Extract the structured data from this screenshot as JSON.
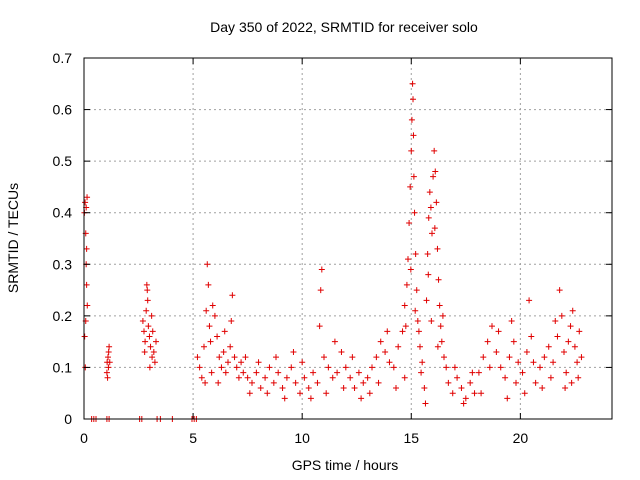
{
  "chart_data": {
    "type": "scatter",
    "title": "Day 350 of 2022, SRMTID for receiver solo",
    "xlabel": "GPS time / hours",
    "ylabel": "SRMTID / TECUs",
    "xlim": [
      0,
      24.2
    ],
    "ylim": [
      0,
      0.7
    ],
    "xticks": [
      0,
      5,
      10,
      15,
      20
    ],
    "xtick_labels": [
      "0",
      "5",
      "10",
      "15",
      "20"
    ],
    "yticks": [
      0,
      0.1,
      0.2,
      0.3,
      0.4,
      0.5,
      0.6,
      0.7
    ],
    "ytick_labels": [
      "0",
      "0.1",
      "0.2",
      "0.3",
      "0.4",
      "0.5",
      "0.6",
      "0.7"
    ],
    "grid": true,
    "marker": "+",
    "color": "#e00000",
    "series": [
      {
        "name": "SRMTID",
        "points": [
          [
            0.02,
            0.4
          ],
          [
            0.05,
            0.42
          ],
          [
            0.08,
            0.36
          ],
          [
            0.1,
            0.3
          ],
          [
            0.12,
            0.26
          ],
          [
            0.15,
            0.22
          ],
          [
            0.03,
            0.16
          ],
          [
            0.06,
            0.1
          ],
          [
            0.1,
            0.41
          ],
          [
            0.14,
            0.43
          ],
          [
            0.08,
            0.19
          ],
          [
            0.12,
            0.33
          ],
          [
            0.35,
            0.0
          ],
          [
            0.45,
            0.0
          ],
          [
            0.55,
            0.0
          ],
          [
            1.05,
            0.0
          ],
          [
            1.15,
            0.0
          ],
          [
            2.55,
            0.0
          ],
          [
            2.65,
            0.0
          ],
          [
            3.35,
            0.0
          ],
          [
            3.5,
            0.0
          ],
          [
            4.05,
            0.0
          ],
          [
            4.95,
            0.0
          ],
          [
            5.05,
            0.0
          ],
          [
            5.15,
            0.0
          ],
          [
            1.05,
            0.09
          ],
          [
            1.1,
            0.12
          ],
          [
            1.15,
            0.14
          ],
          [
            1.12,
            0.1
          ],
          [
            1.08,
            0.08
          ],
          [
            1.18,
            0.11
          ],
          [
            1.13,
            0.13
          ],
          [
            1.06,
            0.11
          ],
          [
            2.7,
            0.19
          ],
          [
            2.75,
            0.17
          ],
          [
            2.8,
            0.15
          ],
          [
            2.85,
            0.21
          ],
          [
            2.9,
            0.25
          ],
          [
            2.95,
            0.18
          ],
          [
            3.0,
            0.16
          ],
          [
            3.05,
            0.14
          ],
          [
            3.1,
            0.2
          ],
          [
            3.15,
            0.17
          ],
          [
            3.2,
            0.13
          ],
          [
            3.25,
            0.11
          ],
          [
            3.3,
            0.15
          ],
          [
            2.88,
            0.26
          ],
          [
            2.92,
            0.23
          ],
          [
            3.02,
            0.1
          ],
          [
            2.78,
            0.13
          ],
          [
            3.12,
            0.12
          ],
          [
            5.2,
            0.12
          ],
          [
            5.3,
            0.1
          ],
          [
            5.4,
            0.08
          ],
          [
            5.5,
            0.14
          ],
          [
            5.6,
            0.21
          ],
          [
            5.65,
            0.3
          ],
          [
            5.7,
            0.26
          ],
          [
            5.75,
            0.18
          ],
          [
            5.8,
            0.15
          ],
          [
            5.9,
            0.22
          ],
          [
            6.0,
            0.2
          ],
          [
            6.1,
            0.16
          ],
          [
            6.2,
            0.12
          ],
          [
            6.3,
            0.1
          ],
          [
            6.4,
            0.13
          ],
          [
            6.5,
            0.09
          ],
          [
            6.6,
            0.11
          ],
          [
            6.7,
            0.14
          ],
          [
            6.8,
            0.24
          ],
          [
            6.9,
            0.12
          ],
          [
            7.0,
            0.1
          ],
          [
            7.1,
            0.08
          ],
          [
            7.2,
            0.11
          ],
          [
            7.3,
            0.09
          ],
          [
            7.4,
            0.12
          ],
          [
            5.55,
            0.07
          ],
          [
            5.85,
            0.09
          ],
          [
            6.15,
            0.07
          ],
          [
            6.45,
            0.17
          ],
          [
            6.75,
            0.19
          ],
          [
            7.5,
            0.08
          ],
          [
            7.7,
            0.07
          ],
          [
            7.9,
            0.09
          ],
          [
            8.1,
            0.06
          ],
          [
            8.3,
            0.08
          ],
          [
            8.5,
            0.1
          ],
          [
            8.7,
            0.07
          ],
          [
            8.9,
            0.09
          ],
          [
            9.1,
            0.06
          ],
          [
            9.3,
            0.08
          ],
          [
            9.5,
            0.1
          ],
          [
            9.7,
            0.07
          ],
          [
            9.9,
            0.05
          ],
          [
            10.1,
            0.08
          ],
          [
            10.3,
            0.06
          ],
          [
            10.5,
            0.09
          ],
          [
            10.7,
            0.07
          ],
          [
            10.8,
            0.18
          ],
          [
            10.85,
            0.25
          ],
          [
            10.9,
            0.29
          ],
          [
            11.0,
            0.12
          ],
          [
            11.2,
            0.1
          ],
          [
            11.4,
            0.08
          ],
          [
            11.6,
            0.09
          ],
          [
            11.8,
            0.13
          ],
          [
            12.0,
            0.1
          ],
          [
            12.2,
            0.08
          ],
          [
            12.4,
            0.06
          ],
          [
            12.6,
            0.09
          ],
          [
            12.8,
            0.07
          ],
          [
            13.0,
            0.08
          ],
          [
            13.2,
            0.1
          ],
          [
            13.4,
            0.12
          ],
          [
            13.6,
            0.15
          ],
          [
            13.8,
            0.13
          ],
          [
            14.0,
            0.11
          ],
          [
            14.2,
            0.1
          ],
          [
            14.4,
            0.14
          ],
          [
            14.6,
            0.17
          ],
          [
            7.6,
            0.05
          ],
          [
            8.0,
            0.11
          ],
          [
            8.4,
            0.05
          ],
          [
            8.8,
            0.12
          ],
          [
            9.2,
            0.04
          ],
          [
            9.6,
            0.13
          ],
          [
            10.0,
            0.11
          ],
          [
            10.4,
            0.04
          ],
          [
            11.1,
            0.05
          ],
          [
            11.5,
            0.15
          ],
          [
            11.9,
            0.06
          ],
          [
            12.3,
            0.12
          ],
          [
            12.7,
            0.04
          ],
          [
            13.1,
            0.05
          ],
          [
            13.5,
            0.07
          ],
          [
            13.9,
            0.17
          ],
          [
            14.3,
            0.06
          ],
          [
            14.7,
            0.08
          ],
          [
            14.7,
            0.22
          ],
          [
            14.8,
            0.26
          ],
          [
            14.85,
            0.31
          ],
          [
            14.9,
            0.38
          ],
          [
            14.95,
            0.45
          ],
          [
            15.0,
            0.52
          ],
          [
            15.03,
            0.58
          ],
          [
            15.06,
            0.65
          ],
          [
            15.08,
            0.62
          ],
          [
            15.1,
            0.55
          ],
          [
            15.12,
            0.47
          ],
          [
            15.15,
            0.4
          ],
          [
            15.2,
            0.32
          ],
          [
            15.25,
            0.25
          ],
          [
            15.3,
            0.19
          ],
          [
            15.4,
            0.14
          ],
          [
            15.5,
            0.11
          ],
          [
            15.6,
            0.06
          ],
          [
            15.65,
            0.03
          ],
          [
            15.7,
            0.23
          ],
          [
            15.75,
            0.32
          ],
          [
            15.8,
            0.39
          ],
          [
            15.85,
            0.44
          ],
          [
            15.9,
            0.41
          ],
          [
            15.95,
            0.36
          ],
          [
            16.0,
            0.47
          ],
          [
            16.05,
            0.52
          ],
          [
            16.1,
            0.48
          ],
          [
            16.15,
            0.42
          ],
          [
            16.2,
            0.33
          ],
          [
            16.25,
            0.27
          ],
          [
            16.3,
            0.22
          ],
          [
            16.35,
            0.18
          ],
          [
            16.4,
            0.15
          ],
          [
            16.5,
            0.12
          ],
          [
            16.6,
            0.1
          ],
          [
            14.75,
            0.18
          ],
          [
            14.98,
            0.29
          ],
          [
            15.18,
            0.21
          ],
          [
            15.35,
            0.17
          ],
          [
            15.45,
            0.09
          ],
          [
            15.78,
            0.28
          ],
          [
            15.92,
            0.19
          ],
          [
            16.08,
            0.37
          ],
          [
            16.22,
            0.14
          ],
          [
            16.45,
            0.2
          ],
          [
            16.7,
            0.07
          ],
          [
            16.9,
            0.05
          ],
          [
            17.1,
            0.08
          ],
          [
            17.3,
            0.06
          ],
          [
            17.5,
            0.04
          ],
          [
            17.7,
            0.07
          ],
          [
            17.9,
            0.05
          ],
          [
            18.1,
            0.09
          ],
          [
            18.3,
            0.12
          ],
          [
            18.5,
            0.15
          ],
          [
            18.7,
            0.18
          ],
          [
            18.9,
            0.13
          ],
          [
            19.1,
            0.1
          ],
          [
            19.3,
            0.08
          ],
          [
            19.5,
            0.12
          ],
          [
            19.7,
            0.15
          ],
          [
            19.9,
            0.11
          ],
          [
            20.1,
            0.09
          ],
          [
            20.3,
            0.13
          ],
          [
            20.4,
            0.23
          ],
          [
            20.5,
            0.16
          ],
          [
            20.7,
            0.07
          ],
          [
            20.9,
            0.1
          ],
          [
            21.1,
            0.12
          ],
          [
            21.3,
            0.14
          ],
          [
            21.5,
            0.11
          ],
          [
            21.7,
            0.16
          ],
          [
            21.8,
            0.25
          ],
          [
            21.9,
            0.2
          ],
          [
            22.0,
            0.13
          ],
          [
            22.1,
            0.09
          ],
          [
            22.2,
            0.15
          ],
          [
            22.3,
            0.18
          ],
          [
            22.4,
            0.21
          ],
          [
            22.5,
            0.14
          ],
          [
            22.6,
            0.11
          ],
          [
            22.7,
            0.17
          ],
          [
            22.8,
            0.12
          ],
          [
            17.0,
            0.1
          ],
          [
            17.4,
            0.03
          ],
          [
            17.8,
            0.09
          ],
          [
            18.2,
            0.05
          ],
          [
            18.6,
            0.1
          ],
          [
            19.0,
            0.17
          ],
          [
            19.4,
            0.04
          ],
          [
            19.8,
            0.07
          ],
          [
            20.2,
            0.05
          ],
          [
            20.6,
            0.11
          ],
          [
            21.0,
            0.06
          ],
          [
            21.4,
            0.08
          ],
          [
            22.05,
            0.06
          ],
          [
            22.35,
            0.07
          ],
          [
            22.65,
            0.08
          ],
          [
            21.6,
            0.19
          ],
          [
            19.6,
            0.19
          ]
        ]
      }
    ]
  }
}
